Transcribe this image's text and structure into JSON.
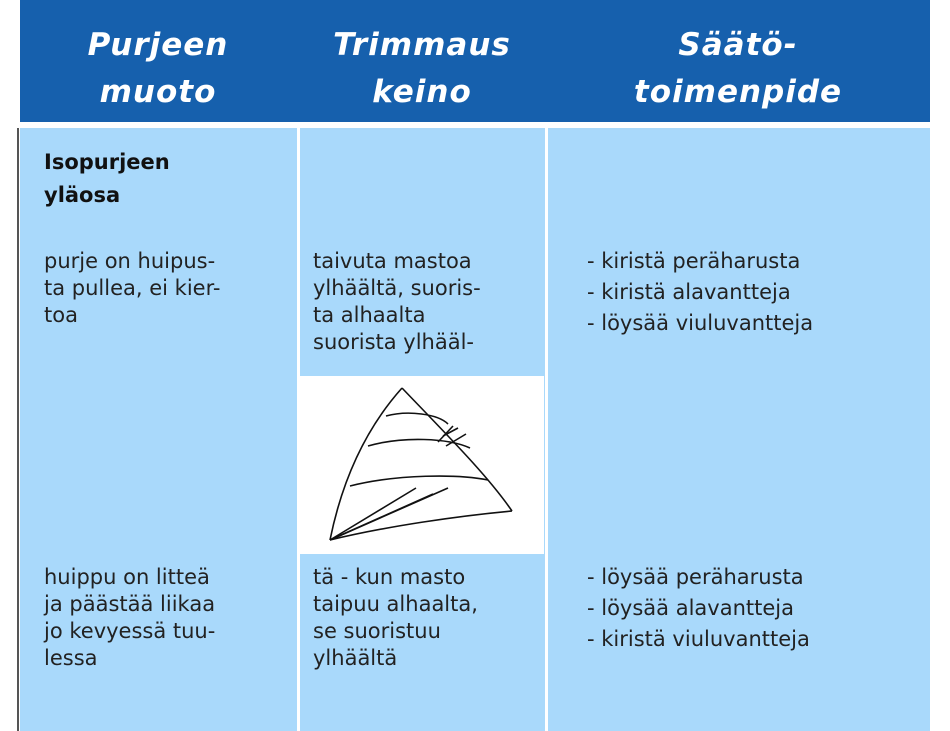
{
  "header": {
    "columns": [
      {
        "lines": [
          "Purjeen",
          "muoto"
        ]
      },
      {
        "lines": [
          "Trimmaus",
          "keino"
        ]
      },
      {
        "lines": [
          "Säätö-",
          "toimenpide"
        ]
      }
    ]
  },
  "section": {
    "lines": [
      "Isopurjeen",
      "yläosa"
    ]
  },
  "rows": [
    {
      "cells": [
        {
          "lines": [
            "purje on huipus-",
            "ta pullea, ei kier-",
            "toa"
          ]
        },
        {
          "lines": [
            "taivuta mastoa",
            "ylhäältä, suoris-",
            "ta alhaalta",
            "suorista ylhääl-"
          ]
        },
        {
          "lines": [
            "- kiristä peräharusta",
            "- kiristä alavantteja",
            "- löysää viuluvantteja"
          ]
        }
      ]
    },
    {
      "cells": [
        {
          "lines": [
            "huippu on litteä",
            "ja päästää liikaa",
            "jo kevyessä tuu-",
            "lessa"
          ]
        },
        {
          "lines": [
            "tä - kun masto",
            "taipuu alhaalta,",
            "se suoristuu",
            "ylhäältä"
          ]
        },
        {
          "lines": [
            "- löysää peräharusta",
            "- löysää alavantteja",
            "- kiristä viuluvantteja"
          ]
        }
      ]
    }
  ]
}
